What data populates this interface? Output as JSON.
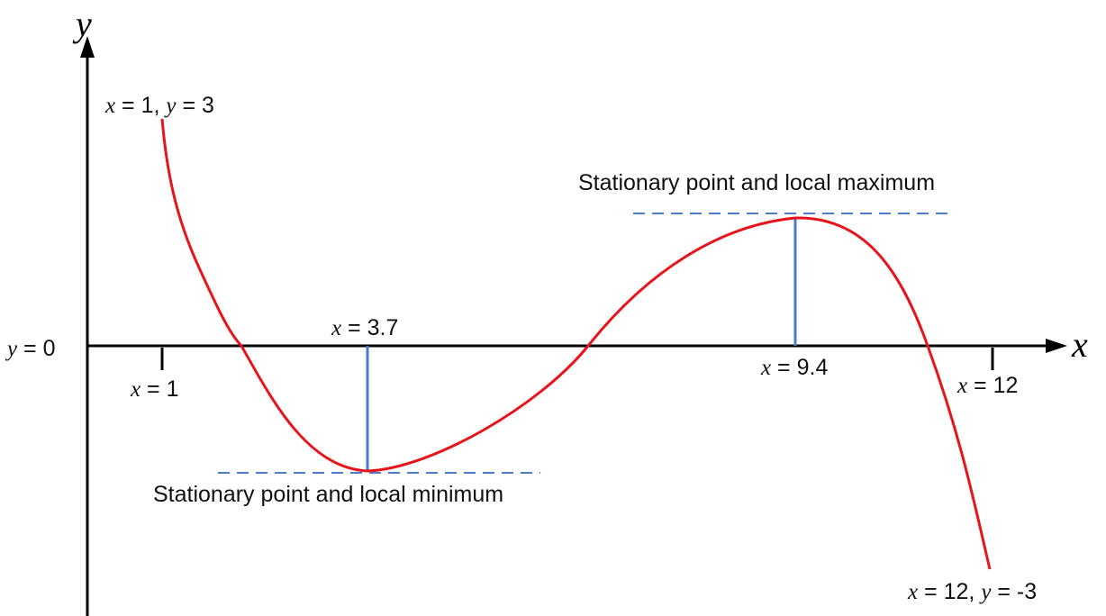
{
  "axes": {
    "x_name": "x",
    "y_name": "y",
    "color": "#000000"
  },
  "curve": {
    "color": "#e8141b",
    "start": {
      "x": 1,
      "y": 3
    },
    "end": {
      "x": 12,
      "y": -3
    }
  },
  "guide_color": "#4a7cc7",
  "labels": {
    "start_point": {
      "x_var": "x",
      "x_text": " = 1, ",
      "y_var": "y",
      "y_text": " = 3"
    },
    "end_point": {
      "x_var": "x",
      "x_text": " = 12, ",
      "y_var": "y",
      "y_text": " = -3"
    },
    "y_zero": {
      "var": "y",
      "text": " = 0"
    },
    "x_one": {
      "var": "x",
      "text": " = 1"
    },
    "x_twelve": {
      "var": "x",
      "text": " = 12"
    },
    "x_min": {
      "var": "x",
      "text": " = 3.7"
    },
    "x_max": {
      "var": "x",
      "text": " = 9.4"
    },
    "local_max": "Stationary point and local maximum",
    "local_min": "Stationary point and local minimum"
  }
}
